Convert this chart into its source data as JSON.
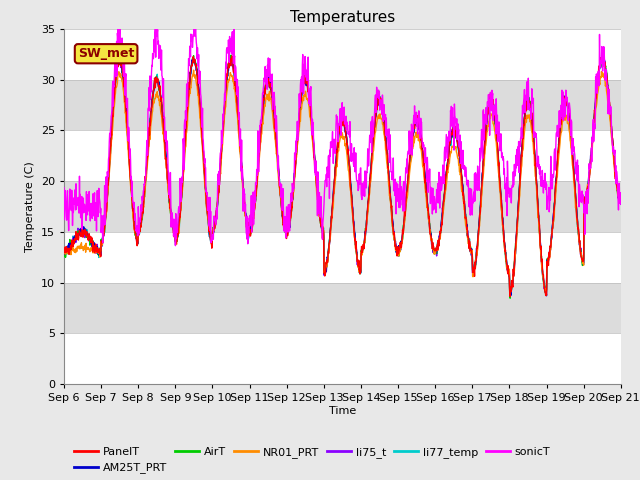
{
  "title": "Temperatures",
  "xlabel": "Time",
  "ylabel": "Temperature (C)",
  "ylim": [
    0,
    35
  ],
  "yticks": [
    0,
    5,
    10,
    15,
    20,
    25,
    30,
    35
  ],
  "date_labels": [
    "Sep 6",
    "Sep 7",
    "Sep 8",
    "Sep 9",
    "Sep 10",
    "Sep 11",
    "Sep 12",
    "Sep 13",
    "Sep 14",
    "Sep 15",
    "Sep 16",
    "Sep 17",
    "Sep 18",
    "Sep 19",
    "Sep 20",
    "Sep 21"
  ],
  "annotation_text": "SW_met",
  "annotation_color": "#8B0000",
  "annotation_bg": "#F5E642",
  "series_colors": {
    "PanelT": "#FF0000",
    "AM25T_PRT": "#0000CC",
    "AirT": "#00CC00",
    "NR01_PRT": "#FF8C00",
    "li75_t": "#8B00FF",
    "li77_temp": "#00CCCC",
    "sonicT": "#FF00FF"
  },
  "bg_color": "#E8E8E8",
  "band_colors": [
    "#FFFFFF",
    "#DCDCDC",
    "#FFFFFF",
    "#DCDCDC",
    "#FFFFFF",
    "#DCDCDC",
    "#FFFFFF"
  ],
  "band_ranges": [
    [
      0,
      5
    ],
    [
      5,
      10
    ],
    [
      10,
      15
    ],
    [
      15,
      20
    ],
    [
      20,
      25
    ],
    [
      25,
      30
    ],
    [
      30,
      35
    ]
  ],
  "title_fontsize": 11,
  "label_fontsize": 8,
  "tick_fontsize": 8,
  "legend_fontsize": 8,
  "figsize": [
    6.4,
    4.8
  ],
  "dpi": 100
}
